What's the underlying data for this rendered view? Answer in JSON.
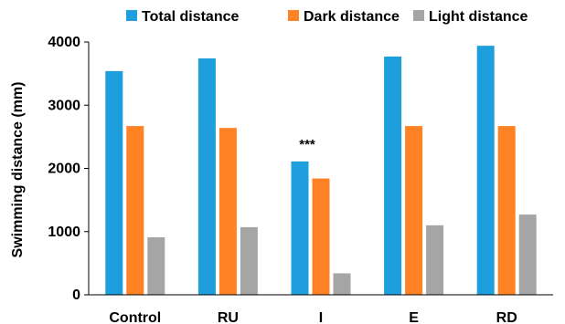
{
  "chart_data": {
    "type": "bar",
    "categories": [
      "Control",
      "RU",
      "I",
      "E",
      "RD"
    ],
    "series": [
      {
        "name": "Total distance",
        "color": "#1f9ede",
        "values": [
          3540,
          3740,
          2110,
          3770,
          3940
        ]
      },
      {
        "name": "Dark distance",
        "color": "#ff8224",
        "values": [
          2670,
          2640,
          1840,
          2670,
          2670
        ]
      },
      {
        "name": "Light distance",
        "color": "#a5a5a5",
        "values": [
          910,
          1070,
          340,
          1100,
          1270
        ]
      }
    ],
    "ylabel": "Swimming distance (mm)",
    "xlabel": "",
    "ylim": [
      0,
      4000
    ],
    "yticks": [
      0,
      1000,
      2000,
      3000,
      4000
    ],
    "grid": false,
    "legend": "top",
    "annotations": [
      {
        "text": "***",
        "category": "I",
        "series": "Total distance"
      }
    ]
  }
}
